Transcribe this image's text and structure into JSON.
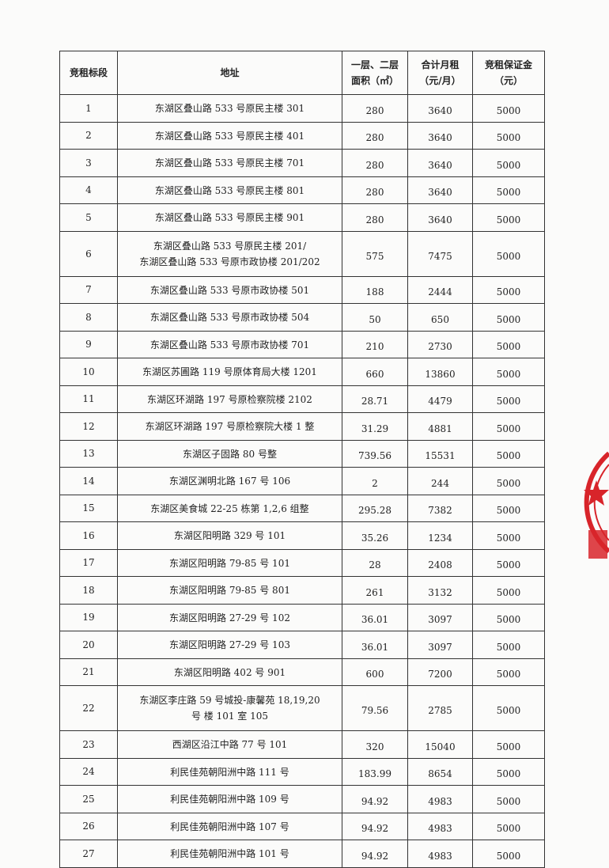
{
  "table": {
    "headers": [
      "竞租标段",
      "地址",
      "一层、二层\n面积（㎡）",
      "合计月租\n（元/月）",
      "竞租保证金\n（元）"
    ],
    "rows": [
      [
        "1",
        "东湖区叠山路 533 号原民主楼 301",
        "280",
        "3640",
        "5000"
      ],
      [
        "2",
        "东湖区叠山路 533 号原民主楼 401",
        "280",
        "3640",
        "5000"
      ],
      [
        "3",
        "东湖区叠山路 533 号原民主楼 701",
        "280",
        "3640",
        "5000"
      ],
      [
        "4",
        "东湖区叠山路 533 号原民主楼 801",
        "280",
        "3640",
        "5000"
      ],
      [
        "5",
        "东湖区叠山路 533 号原民主楼 901",
        "280",
        "3640",
        "5000"
      ],
      [
        "6",
        "东湖区叠山路 533 号原民主楼 201/\n东湖区叠山路 533 号原市政协楼 201/202",
        "575",
        "7475",
        "5000"
      ],
      [
        "7",
        "东湖区叠山路 533 号原市政协楼 501",
        "188",
        "2444",
        "5000"
      ],
      [
        "8",
        "东湖区叠山路 533 号原市政协楼 504",
        "50",
        "650",
        "5000"
      ],
      [
        "9",
        "东湖区叠山路 533 号原市政协楼 701",
        "210",
        "2730",
        "5000"
      ],
      [
        "10",
        "东湖区苏圃路 119 号原体育局大楼 1201",
        "660",
        "13860",
        "5000"
      ],
      [
        "11",
        "东湖区环湖路 197 号原检察院楼 2102",
        "28.71",
        "4479",
        "5000"
      ],
      [
        "12",
        "东湖区环湖路 197 号原检察院大楼 1 整",
        "31.29",
        "4881",
        "5000"
      ],
      [
        "13",
        "东湖区子固路 80 号整",
        "739.56",
        "15531",
        "5000"
      ],
      [
        "14",
        "东湖区渊明北路 167 号 106",
        "2",
        "244",
        "5000"
      ],
      [
        "15",
        "东湖区美食城 22-25 栋第 1,2,6 组整",
        "295.28",
        "7382",
        "5000"
      ],
      [
        "16",
        "东湖区阳明路 329 号 101",
        "35.26",
        "1234",
        "5000"
      ],
      [
        "17",
        "东湖区阳明路 79-85 号 101",
        "28",
        "2408",
        "5000"
      ],
      [
        "18",
        "东湖区阳明路 79-85 号 801",
        "261",
        "3132",
        "5000"
      ],
      [
        "19",
        "东湖区阳明路 27-29 号 102",
        "36.01",
        "3097",
        "5000"
      ],
      [
        "20",
        "东湖区阳明路 27-29 号 103",
        "36.01",
        "3097",
        "5000"
      ],
      [
        "21",
        "东湖区阳明路 402 号 901",
        "600",
        "7200",
        "5000"
      ],
      [
        "22",
        "东湖区李庄路 59 号城投-康馨苑 18,19,20\n号 楼 101 室 105",
        "79.56",
        "2785",
        "5000"
      ],
      [
        "23",
        "西湖区沿江中路 77 号 101",
        "320",
        "15040",
        "5000"
      ],
      [
        "24",
        "利民佳苑朝阳洲中路 111 号",
        "183.99",
        "8654",
        "5000"
      ],
      [
        "25",
        "利民佳苑朝阳洲中路 109 号",
        "94.92",
        "4983",
        "5000"
      ],
      [
        "26",
        "利民佳苑朝阳洲中路 107 号",
        "94.92",
        "4983",
        "5000"
      ],
      [
        "27",
        "利民佳苑朝阳洲中路 101 号",
        "94.92",
        "4983",
        "5000"
      ]
    ]
  },
  "stamp": {
    "color": "#d8242a"
  }
}
